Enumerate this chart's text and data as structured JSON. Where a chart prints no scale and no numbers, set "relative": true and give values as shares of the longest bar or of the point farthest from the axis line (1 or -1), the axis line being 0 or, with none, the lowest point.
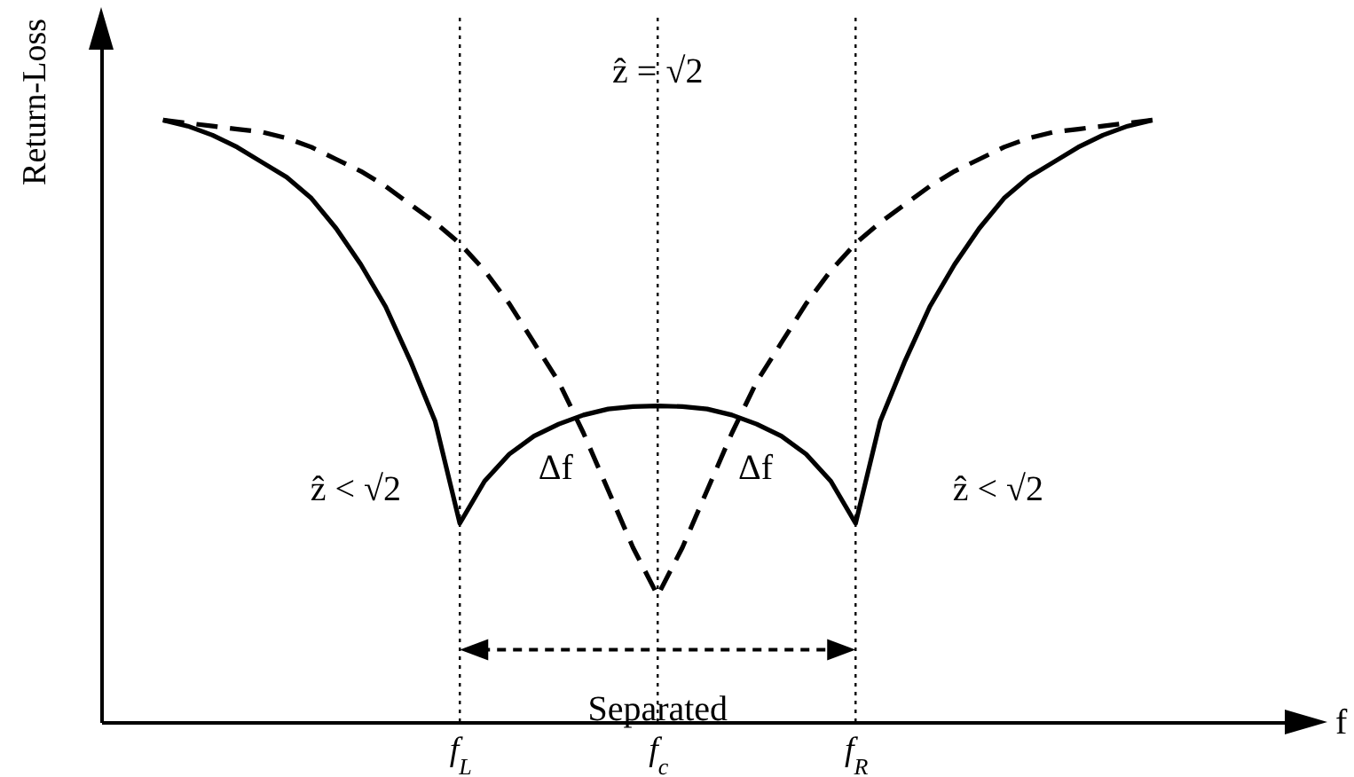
{
  "chart_data": {
    "type": "line",
    "relative": true,
    "xlabel": "f",
    "ylabel": "Return-Loss",
    "categories": [
      null,
      null,
      null,
      null,
      null,
      null,
      null,
      null,
      null,
      null,
      null,
      null,
      null,
      null,
      "f$_{L}$",
      null,
      null,
      null,
      null,
      null,
      null,
      null,
      "f$_{c}$",
      null,
      null,
      null,
      null,
      null,
      null,
      null,
      "f$_{R}$",
      null,
      null,
      null,
      null,
      null,
      null,
      null,
      null,
      null,
      null,
      null,
      null,
      null,
      null,
      null,
      null,
      null,
      null
    ],
    "tick_labels": "x",
    "grid": false,
    "series": [
      {
        "color": "#000000",
        "line_style": "solid",
        "values": [
          null,
          null,
          1,
          0.99,
          0.975,
          0.955,
          0.93,
          0.905,
          0.87,
          0.82,
          0.76,
          0.69,
          0.6,
          0.5,
          0.33,
          0.4,
          0.445,
          0.475,
          0.495,
          0.51,
          0.52,
          0.524,
          0.525,
          0.524,
          0.52,
          0.51,
          0.495,
          0.475,
          0.445,
          0.4,
          0.33,
          0.5,
          0.6,
          0.69,
          0.76,
          0.82,
          0.87,
          0.905,
          0.93,
          0.955,
          0.975,
          0.99,
          1,
          null,
          null,
          null,
          null,
          null,
          null
        ]
      },
      {
        "color": "#000000",
        "line_style": "dashed",
        "values": [
          null,
          null,
          1,
          0.995,
          0.99,
          0.985,
          0.98,
          0.97,
          0.955,
          0.935,
          0.915,
          0.89,
          0.86,
          0.83,
          0.795,
          0.75,
          0.695,
          0.63,
          0.565,
          0.48,
          0.385,
          0.29,
          0.21,
          0.29,
          0.385,
          0.48,
          0.565,
          0.63,
          0.695,
          0.75,
          0.795,
          0.83,
          0.86,
          0.89,
          0.915,
          0.935,
          0.955,
          0.97,
          0.98,
          0.985,
          0.99,
          0.995,
          1,
          null,
          null,
          null,
          null,
          null,
          null
        ]
      }
    ],
    "ref_lines": [
      {
        "axis": "x",
        "value": "f$_{L}$",
        "line_style": "dotted"
      },
      {
        "axis": "x",
        "value": "f$_{c}$",
        "line_style": "dotted"
      },
      {
        "axis": "x",
        "value": "f$_{R}$",
        "line_style": "dotted"
      }
    ],
    "annotations": [
      {
        "text": "ẑ = √2",
        "x": "f$_{c}$",
        "y": 1.08
      },
      "ẑ < √2",
      "ẑ < √2",
      "Δf",
      "Δf",
      {
        "text": "Separated",
        "x": "f$_{c}$",
        "y": 0.02
      }
    ]
  }
}
